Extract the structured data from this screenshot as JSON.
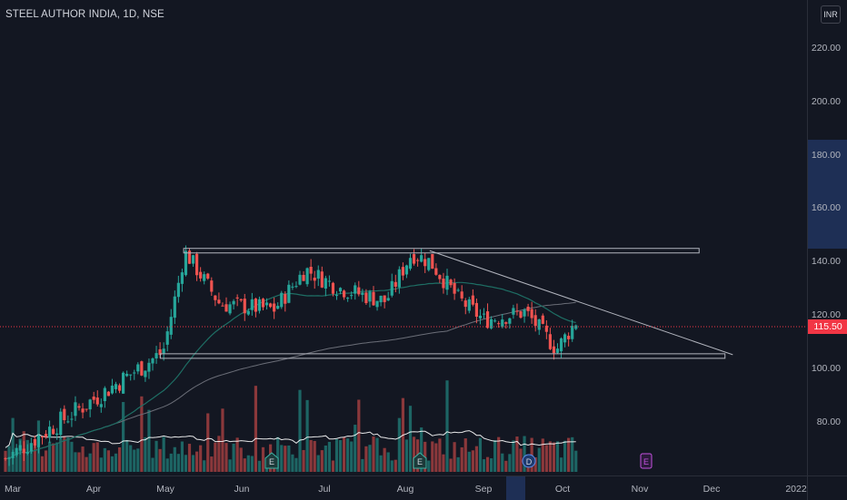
{
  "symbol": {
    "title": "STEEL AUTHOR INDIA, 1D, NSE"
  },
  "currency_label": "INR",
  "colors": {
    "up": "#26a69a",
    "down": "#ef5350",
    "ma_fast": "#1e6e64",
    "ma_slow": "#6b6e78",
    "volume_ma": "#ffffff",
    "drawing": "#b2b5be",
    "current_price": "#f23645",
    "axis_highlight": "#1e2f55"
  },
  "current_price": "115.50",
  "price_ticks": [
    "220.00",
    "200.00",
    "180.00",
    "160.00",
    "140.00",
    "120.00",
    "100.00",
    "80.00"
  ],
  "time_ticks": [
    "Mar",
    "Apr",
    "May",
    "Jun",
    "Jul",
    "Aug",
    "Sep",
    "Oct",
    "Nov",
    "Dec",
    "2022"
  ],
  "event_markers": [
    {
      "label": "E",
      "type": "earnings"
    },
    {
      "label": "E",
      "type": "earnings"
    },
    {
      "label": "D",
      "type": "dividend"
    },
    {
      "label": "E",
      "type": "earnings-upcoming"
    }
  ],
  "chart_data": {
    "type": "candlestick",
    "title": "STEEL AUTHOR INDIA, 1D, NSE",
    "ylim": [
      60,
      230
    ],
    "x_range": [
      "2021-03-01",
      "2022-01-01"
    ],
    "grid": false,
    "current_price": 115.5,
    "ohlc_sampled": [
      {
        "date": "2021-04-28",
        "close": 106
      },
      {
        "date": "2021-05-04",
        "close": 132
      },
      {
        "date": "2021-05-06",
        "close": 142
      },
      {
        "date": "2021-05-07",
        "high": 150.5,
        "close": 143
      },
      {
        "date": "2021-05-20",
        "close": 124
      },
      {
        "date": "2021-06-10",
        "close": 122
      },
      {
        "date": "2021-06-22",
        "close": 137
      },
      {
        "date": "2021-07-05",
        "close": 130
      },
      {
        "date": "2021-07-23",
        "close": 125
      },
      {
        "date": "2021-08-02",
        "close": 143
      },
      {
        "date": "2021-08-09",
        "close": 140
      },
      {
        "date": "2021-08-20",
        "close": 126
      },
      {
        "date": "2021-08-30",
        "close": 118
      },
      {
        "date": "2021-09-15",
        "close": 121
      },
      {
        "date": "2021-09-27",
        "close": 107
      },
      {
        "date": "2021-10-07",
        "close": 121
      },
      {
        "date": "2021-10-13",
        "close": 115.5
      }
    ],
    "drawings": [
      {
        "type": "horizontal_zone",
        "price": 144,
        "from": "2021-05-06",
        "to": "2021-11-21"
      },
      {
        "type": "horizontal_zone",
        "price": 104.5,
        "from": "2021-04-27",
        "to": "2021-12-01"
      },
      {
        "type": "trendline",
        "from": {
          "date": "2021-08-09",
          "price": 144
        },
        "to": {
          "date": "2021-12-04",
          "price": 105
        }
      }
    ]
  }
}
